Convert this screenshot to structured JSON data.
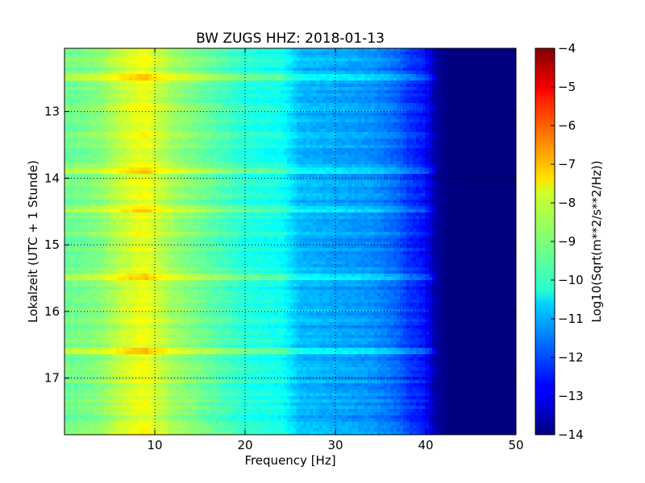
{
  "chart_data": {
    "type": "heatmap",
    "title": "BW ZUGS HHZ: 2018-01-13",
    "xlabel": "Frequency [Hz]",
    "ylabel": "Lokalzeit (UTC + 1 Stunde)",
    "xlim": [
      0,
      50
    ],
    "ylim": [
      12.05,
      17.85
    ],
    "y_inverted": true,
    "x_ticks": [
      10,
      20,
      30,
      40,
      50
    ],
    "x_tick_labels": [
      "10",
      "20",
      "30",
      "40",
      "50"
    ],
    "y_ticks": [
      13,
      14,
      15,
      16,
      17
    ],
    "y_tick_labels": [
      "13",
      "14",
      "15",
      "16",
      "17"
    ],
    "grid": true,
    "colormap": "jet",
    "colorbar": {
      "label": "Log10(Sqrt(m**2/s**2/Hz))",
      "range": [
        -14,
        -4
      ],
      "ticks": [
        -4,
        -5,
        -6,
        -7,
        -8,
        -9,
        -10,
        -11,
        -12,
        -13,
        -14
      ],
      "tick_labels": [
        "−4",
        "−5",
        "−6",
        "−7",
        "−8",
        "−9",
        "−10",
        "−11",
        "−12",
        "−13",
        "−14"
      ]
    },
    "spectrum_profile": {
      "frequency_hz": [
        0,
        2,
        4,
        6,
        7,
        8,
        9,
        10,
        12,
        14,
        16,
        18,
        20,
        22,
        24,
        25,
        26,
        28,
        30,
        32,
        34,
        36,
        37,
        38,
        39,
        40,
        41,
        42,
        43,
        44,
        46,
        48,
        50
      ],
      "value": [
        -9.2,
        -9.1,
        -8.9,
        -8.4,
        -8.2,
        -8.0,
        -7.9,
        -8.2,
        -8.7,
        -9.0,
        -9.3,
        -9.6,
        -9.9,
        -10.0,
        -10.1,
        -10.5,
        -10.9,
        -11.0,
        -11.1,
        -11.2,
        -11.3,
        -11.6,
        -11.8,
        -12.2,
        -12.4,
        -12.6,
        -13.6,
        -13.9,
        -14.0,
        -14.0,
        -14.0,
        -14.0,
        -14.0
      ]
    },
    "notable_events": [
      {
        "time_h": 14.45,
        "note": "broadband high-energy line"
      },
      {
        "time_h": 12.5,
        "note": "elevated energy band"
      },
      {
        "time_h": 13.9,
        "note": "elevated energy band"
      },
      {
        "time_h": 15.5,
        "note": "elevated energy band"
      },
      {
        "time_h": 16.6,
        "note": "low-frequency burst"
      }
    ]
  }
}
